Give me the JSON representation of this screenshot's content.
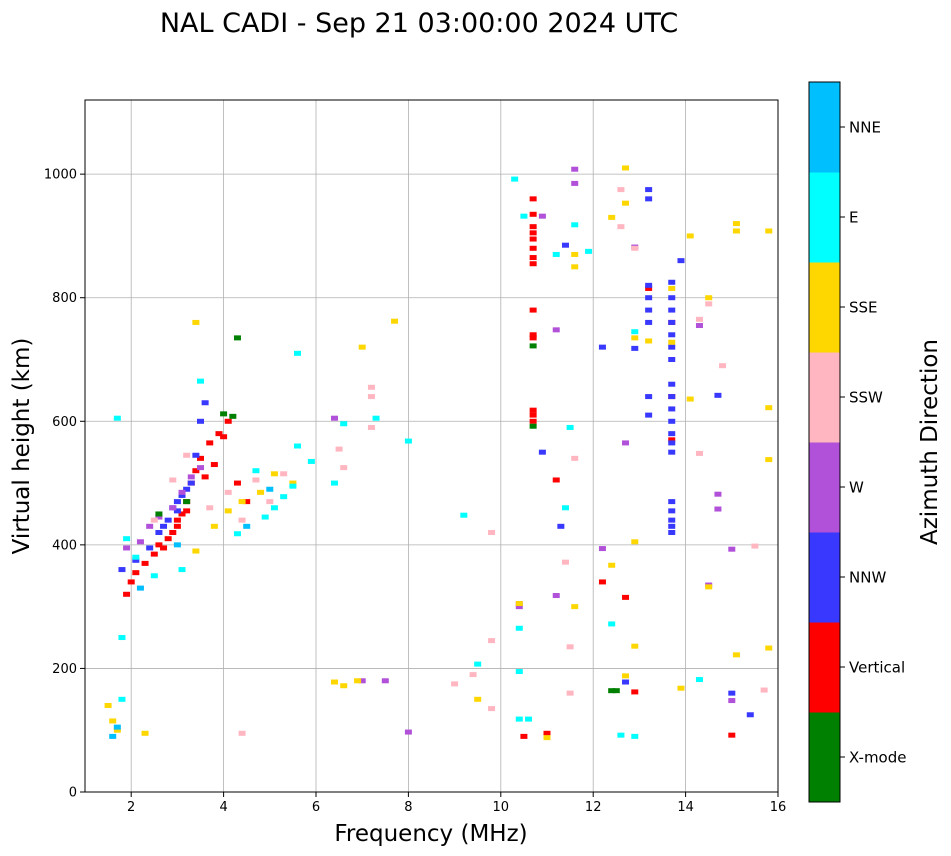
{
  "chart_data": {
    "type": "scatter",
    "title": "NAL CADI - Sep 21 03:00:00 2024 UTC",
    "xlabel": "Frequency (MHz)",
    "ylabel": "Virtual height (km)",
    "xlim": [
      1,
      16
    ],
    "ylim": [
      0,
      1120
    ],
    "xticks": [
      2,
      4,
      6,
      8,
      10,
      12,
      14,
      16
    ],
    "yticks": [
      0,
      200,
      400,
      600,
      800,
      1000
    ],
    "grid": true,
    "colorbar": {
      "label": "Azimuth Direction",
      "categories": [
        "X-mode",
        "Vertical",
        "NNW",
        "W",
        "SSW",
        "SSE",
        "E",
        "NNE"
      ],
      "colors": [
        "#008000",
        "#ff0000",
        "#3838ff",
        "#b150d8",
        "#ffb6c1",
        "#ffd700",
        "#00ffff",
        "#00bfff"
      ]
    },
    "series": [
      {
        "name": "Vertical",
        "points": [
          [
            1.9,
            320
          ],
          [
            2.0,
            340
          ],
          [
            2.1,
            355
          ],
          [
            2.3,
            370
          ],
          [
            2.5,
            385
          ],
          [
            2.6,
            400
          ],
          [
            2.8,
            410
          ],
          [
            2.9,
            420
          ],
          [
            3.0,
            430
          ],
          [
            3.1,
            450
          ],
          [
            3.2,
            470
          ],
          [
            3.3,
            500
          ],
          [
            3.4,
            520
          ],
          [
            3.5,
            540
          ],
          [
            3.7,
            565
          ],
          [
            3.9,
            580
          ],
          [
            4.1,
            600
          ],
          [
            4.3,
            500
          ],
          [
            4.5,
            470
          ],
          [
            2.7,
            395
          ],
          [
            3.0,
            440
          ],
          [
            3.2,
            455
          ],
          [
            3.6,
            510
          ],
          [
            3.8,
            530
          ],
          [
            4.0,
            575
          ],
          [
            10.7,
            960
          ],
          [
            10.7,
            935
          ],
          [
            10.7,
            915
          ],
          [
            10.7,
            905
          ],
          [
            10.7,
            895
          ],
          [
            10.7,
            880
          ],
          [
            10.7,
            865
          ],
          [
            10.7,
            855
          ],
          [
            10.7,
            740
          ],
          [
            10.7,
            735
          ],
          [
            10.7,
            618
          ],
          [
            10.7,
            610
          ],
          [
            10.7,
            600
          ],
          [
            10.7,
            780
          ],
          [
            11.2,
            505
          ],
          [
            12.2,
            340
          ],
          [
            12.7,
            315
          ],
          [
            12.9,
            162
          ],
          [
            13.2,
            815
          ],
          [
            13.7,
            760
          ],
          [
            13.7,
            640
          ],
          [
            13.7,
            570
          ],
          [
            15.0,
            92
          ],
          [
            10.5,
            90
          ],
          [
            11.0,
            95
          ]
        ]
      },
      {
        "name": "NNW",
        "points": [
          [
            1.8,
            360
          ],
          [
            2.1,
            375
          ],
          [
            2.4,
            395
          ],
          [
            2.6,
            420
          ],
          [
            2.8,
            440
          ],
          [
            2.9,
            460
          ],
          [
            3.0,
            470
          ],
          [
            3.1,
            480
          ],
          [
            3.2,
            490
          ],
          [
            3.3,
            500
          ],
          [
            3.4,
            545
          ],
          [
            3.5,
            600
          ],
          [
            3.6,
            630
          ],
          [
            3.0,
            455
          ],
          [
            2.7,
            430
          ],
          [
            13.2,
            975
          ],
          [
            13.2,
            960
          ],
          [
            13.2,
            820
          ],
          [
            13.2,
            800
          ],
          [
            13.2,
            780
          ],
          [
            13.2,
            760
          ],
          [
            13.2,
            640
          ],
          [
            13.2,
            610
          ],
          [
            13.7,
            825
          ],
          [
            13.7,
            800
          ],
          [
            13.7,
            780
          ],
          [
            13.7,
            760
          ],
          [
            13.7,
            740
          ],
          [
            13.7,
            720
          ],
          [
            13.7,
            700
          ],
          [
            13.7,
            660
          ],
          [
            13.7,
            640
          ],
          [
            13.7,
            620
          ],
          [
            13.7,
            600
          ],
          [
            13.7,
            580
          ],
          [
            13.7,
            565
          ],
          [
            13.7,
            550
          ],
          [
            13.7,
            470
          ],
          [
            13.7,
            455
          ],
          [
            13.7,
            440
          ],
          [
            13.7,
            430
          ],
          [
            13.7,
            420
          ],
          [
            13.9,
            860
          ],
          [
            11.3,
            430
          ],
          [
            11.4,
            885
          ],
          [
            12.2,
            720
          ],
          [
            12.9,
            718
          ],
          [
            15.0,
            160
          ],
          [
            15.4,
            125
          ],
          [
            14.7,
            642
          ],
          [
            12.7,
            178
          ],
          [
            10.9,
            550
          ]
        ]
      },
      {
        "name": "W",
        "points": [
          [
            1.9,
            395
          ],
          [
            2.2,
            405
          ],
          [
            2.4,
            430
          ],
          [
            2.6,
            445
          ],
          [
            2.9,
            460
          ],
          [
            3.1,
            485
          ],
          [
            3.3,
            510
          ],
          [
            3.5,
            525
          ],
          [
            6.4,
            605
          ],
          [
            7.5,
            180
          ],
          [
            7.0,
            180
          ],
          [
            8.0,
            97
          ],
          [
            10.4,
            305
          ],
          [
            10.4,
            300
          ],
          [
            11.2,
            748
          ],
          [
            11.2,
            318
          ],
          [
            11.6,
            1008
          ],
          [
            11.6,
            985
          ],
          [
            12.9,
            882
          ],
          [
            12.7,
            565
          ],
          [
            14.5,
            335
          ],
          [
            14.7,
            482
          ],
          [
            14.7,
            458
          ],
          [
            15.0,
            393
          ],
          [
            15.0,
            148
          ],
          [
            14.3,
            755
          ],
          [
            12.2,
            394
          ],
          [
            10.9,
            932
          ]
        ]
      },
      {
        "name": "SSW",
        "points": [
          [
            2.5,
            440
          ],
          [
            2.9,
            505
          ],
          [
            3.2,
            545
          ],
          [
            3.7,
            460
          ],
          [
            4.1,
            485
          ],
          [
            4.4,
            440
          ],
          [
            4.7,
            505
          ],
          [
            5.0,
            470
          ],
          [
            5.3,
            515
          ],
          [
            6.5,
            555
          ],
          [
            6.6,
            525
          ],
          [
            7.2,
            655
          ],
          [
            7.2,
            640
          ],
          [
            7.2,
            590
          ],
          [
            9.0,
            175
          ],
          [
            9.4,
            190
          ],
          [
            9.8,
            245
          ],
          [
            9.8,
            420
          ],
          [
            9.8,
            135
          ],
          [
            11.4,
            372
          ],
          [
            11.5,
            235
          ],
          [
            11.5,
            160
          ],
          [
            11.6,
            540
          ],
          [
            12.6,
            975
          ],
          [
            12.6,
            915
          ],
          [
            12.9,
            880
          ],
          [
            14.5,
            790
          ],
          [
            14.3,
            765
          ],
          [
            14.3,
            548
          ],
          [
            14.8,
            690
          ],
          [
            15.7,
            165
          ],
          [
            15.5,
            398
          ],
          [
            4.4,
            95
          ]
        ]
      },
      {
        "name": "SSE",
        "points": [
          [
            1.5,
            140
          ],
          [
            1.6,
            115
          ],
          [
            1.7,
            100
          ],
          [
            2.3,
            95
          ],
          [
            3.4,
            760
          ],
          [
            3.4,
            390
          ],
          [
            3.8,
            430
          ],
          [
            4.1,
            455
          ],
          [
            4.4,
            470
          ],
          [
            4.8,
            485
          ],
          [
            5.1,
            515
          ],
          [
            5.5,
            500
          ],
          [
            6.4,
            178
          ],
          [
            6.6,
            172
          ],
          [
            6.9,
            180
          ],
          [
            7.0,
            720
          ],
          [
            7.7,
            762
          ],
          [
            9.5,
            150
          ],
          [
            10.4,
            305
          ],
          [
            11.0,
            88
          ],
          [
            11.6,
            300
          ],
          [
            11.6,
            870
          ],
          [
            11.6,
            850
          ],
          [
            12.4,
            930
          ],
          [
            12.4,
            367
          ],
          [
            12.7,
            1010
          ],
          [
            12.7,
            953
          ],
          [
            12.7,
            188
          ],
          [
            12.9,
            735
          ],
          [
            12.9,
            405
          ],
          [
            12.9,
            236
          ],
          [
            13.9,
            168
          ],
          [
            14.1,
            900
          ],
          [
            14.1,
            636
          ],
          [
            14.5,
            332
          ],
          [
            14.5,
            800
          ],
          [
            15.1,
            920
          ],
          [
            15.1,
            908
          ],
          [
            15.1,
            222
          ],
          [
            15.8,
            908
          ],
          [
            15.8,
            622
          ],
          [
            15.8,
            538
          ],
          [
            15.8,
            233
          ],
          [
            13.7,
            815
          ],
          [
            13.7,
            728
          ],
          [
            13.2,
            730
          ]
        ]
      },
      {
        "name": "E",
        "points": [
          [
            1.7,
            605
          ],
          [
            1.8,
            250
          ],
          [
            1.8,
            150
          ],
          [
            1.9,
            410
          ],
          [
            2.1,
            380
          ],
          [
            2.5,
            350
          ],
          [
            3.1,
            360
          ],
          [
            3.5,
            665
          ],
          [
            4.3,
            418
          ],
          [
            4.7,
            520
          ],
          [
            4.9,
            445
          ],
          [
            5.1,
            460
          ],
          [
            5.3,
            478
          ],
          [
            5.5,
            495
          ],
          [
            5.6,
            710
          ],
          [
            5.6,
            560
          ],
          [
            5.9,
            535
          ],
          [
            6.4,
            500
          ],
          [
            6.6,
            596
          ],
          [
            7.3,
            605
          ],
          [
            8.0,
            568
          ],
          [
            9.2,
            448
          ],
          [
            9.5,
            207
          ],
          [
            10.3,
            992
          ],
          [
            10.4,
            265
          ],
          [
            10.4,
            195
          ],
          [
            10.4,
            118
          ],
          [
            10.5,
            932
          ],
          [
            10.6,
            118
          ],
          [
            11.2,
            870
          ],
          [
            11.4,
            460
          ],
          [
            11.5,
            590
          ],
          [
            11.6,
            918
          ],
          [
            11.9,
            875
          ],
          [
            12.4,
            272
          ],
          [
            12.6,
            92
          ],
          [
            12.9,
            745
          ],
          [
            12.9,
            90
          ],
          [
            14.3,
            182
          ]
        ]
      },
      {
        "name": "NNE",
        "points": [
          [
            1.6,
            90
          ],
          [
            1.7,
            105
          ],
          [
            2.2,
            330
          ],
          [
            3.0,
            400
          ],
          [
            4.5,
            430
          ],
          [
            5.0,
            490
          ]
        ]
      },
      {
        "name": "X-mode",
        "points": [
          [
            4.0,
            612
          ],
          [
            4.2,
            608
          ],
          [
            4.3,
            735
          ],
          [
            2.6,
            450
          ],
          [
            3.2,
            470
          ],
          [
            10.7,
            722
          ],
          [
            10.7,
            592
          ],
          [
            12.4,
            164
          ],
          [
            12.5,
            164
          ]
        ]
      }
    ]
  }
}
